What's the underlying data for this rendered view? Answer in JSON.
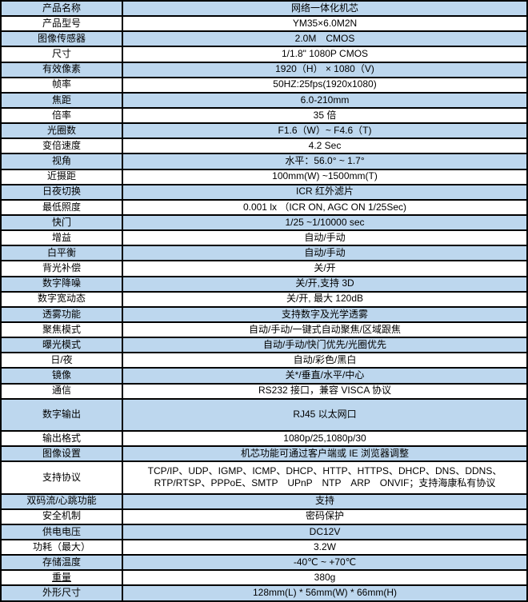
{
  "colors": {
    "row_shade": "#BDD7EE",
    "border": "#000000",
    "text": "#000000"
  },
  "table": {
    "rows": [
      {
        "label": "产品名称",
        "value": "网络一体化机芯",
        "tall": false
      },
      {
        "label": "产品型号",
        "value": "YM35×6.0M2N",
        "tall": false
      },
      {
        "label": "图像传感器",
        "value": "2.0M　CMOS",
        "tall": false
      },
      {
        "label": "尺寸",
        "value": "1/1.8\" 1080P CMOS",
        "tall": false
      },
      {
        "label": "有效像素",
        "value": "1920（H） × 1080（V)",
        "tall": false
      },
      {
        "label": "帧率",
        "value": "50HZ:25fps(1920x1080)",
        "tall": false
      },
      {
        "label": "焦距",
        "value": "6.0-210mm",
        "tall": false
      },
      {
        "label": "倍率",
        "value": "35 倍",
        "tall": false
      },
      {
        "label": "光圈数",
        "value": "F1.6（W）~ F4.6（T)",
        "tall": false
      },
      {
        "label": "变倍速度",
        "value": "4.2 Sec",
        "tall": false
      },
      {
        "label": "视角",
        "value": "水平：56.0° ~ 1.7°",
        "tall": false
      },
      {
        "label": "近摄距",
        "value": "100mm(W) ~1500mm(T)",
        "tall": false
      },
      {
        "label": "日夜切换",
        "value": "ICR 红外滤片",
        "tall": false
      },
      {
        "label": "最低照度",
        "value": "0.001 lx （ICR ON, AGC ON 1/25Sec)",
        "tall": false
      },
      {
        "label": "快门",
        "value": "1/25 ~1/10000 sec",
        "tall": false
      },
      {
        "label": "增益",
        "value": "自动/手动",
        "tall": false
      },
      {
        "label": "白平衡",
        "value": "自动/手动",
        "tall": false
      },
      {
        "label": "背光补偿",
        "value": "关/开",
        "tall": false
      },
      {
        "label": "数字降噪",
        "value": "关/开,支持 3D",
        "tall": false
      },
      {
        "label": "数字宽动态",
        "value": "关/开, 最大 120dB",
        "tall": false
      },
      {
        "label": "透雾功能",
        "value": "支持数字及光学透雾",
        "tall": false
      },
      {
        "label": "聚焦模式",
        "value": "自动/手动/一键式自动聚焦/区域跟焦",
        "tall": false
      },
      {
        "label": "曝光模式",
        "value": "自动/手动/快门优先/光圈优先",
        "tall": false
      },
      {
        "label": "日/夜",
        "value": "自动/彩色/黑白",
        "tall": false
      },
      {
        "label": "镜像",
        "value": "关*/垂直/水平/中心",
        "tall": false
      },
      {
        "label": "通信",
        "value": "RS232 接口，兼容 VISCA 协议",
        "tall": false
      },
      {
        "label": "数字输出",
        "value": "RJ45 以太网口",
        "tall": true
      },
      {
        "label": "输出格式",
        "value": "1080p/25,1080p/30",
        "tall": false
      },
      {
        "label": "图像设置",
        "value": "机芯功能可通过客户端或 IE 浏览器调整",
        "tall": false
      },
      {
        "label": "支持协议",
        "value": "TCP/IP、UDP、IGMP、ICMP、DHCP、HTTP、HTTPS、DHCP、DNS、DDNS、RTP/RTSP、PPPoE、SMTP　UPnP　NTP　ARP　ONVIF；支持海康私有协议",
        "tall": true
      },
      {
        "label": "双码流/心跳功能",
        "value": "支持",
        "tall": false
      },
      {
        "label": "安全机制",
        "value": "密码保护",
        "tall": false
      },
      {
        "label": "供电电压",
        "value": "DC12V",
        "tall": false
      },
      {
        "label": "功耗（最大）",
        "value": "3.2W",
        "tall": false
      },
      {
        "label": "存储温度",
        "value": "-40℃ ~ +70℃",
        "tall": false
      },
      {
        "label": "重量",
        "value": "380g",
        "tall": false,
        "underline_label": true
      },
      {
        "label": "外形尺寸",
        "value": "128mm(L) * 56mm(W) * 66mm(H)",
        "tall": true
      }
    ]
  }
}
